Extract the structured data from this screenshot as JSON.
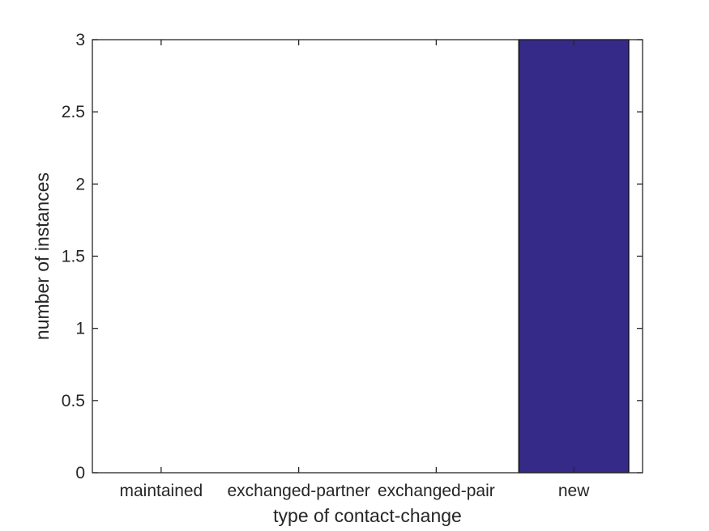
{
  "figure": {
    "background": "#ffffff"
  },
  "chart_data": {
    "type": "bar",
    "title": "",
    "categories": [
      "maintained",
      "exchanged-partner",
      "exchanged-pair",
      "new"
    ],
    "values": [
      0,
      0,
      0,
      3
    ],
    "xlabel": "type of contact-change",
    "ylabel": "number of instances",
    "ylim": [
      0,
      3
    ],
    "yticks": [
      0,
      0.5,
      1,
      1.5,
      2,
      2.5,
      3
    ],
    "ytick_labels": [
      "0",
      "0.5",
      "1",
      "1.5",
      "2",
      "2.5",
      "3"
    ],
    "bar_width_fraction": 0.8,
    "grid": false,
    "box": true,
    "tick_direction": "in",
    "tick_length": 7,
    "legend": null,
    "colors": {
      "bar_fill": "#352a87",
      "bar_edge": "#000000",
      "axis": "#262626",
      "text": "#262626",
      "background": "#ffffff"
    },
    "font_sizes": {
      "tick_label": 21,
      "axis_label": 23
    }
  }
}
